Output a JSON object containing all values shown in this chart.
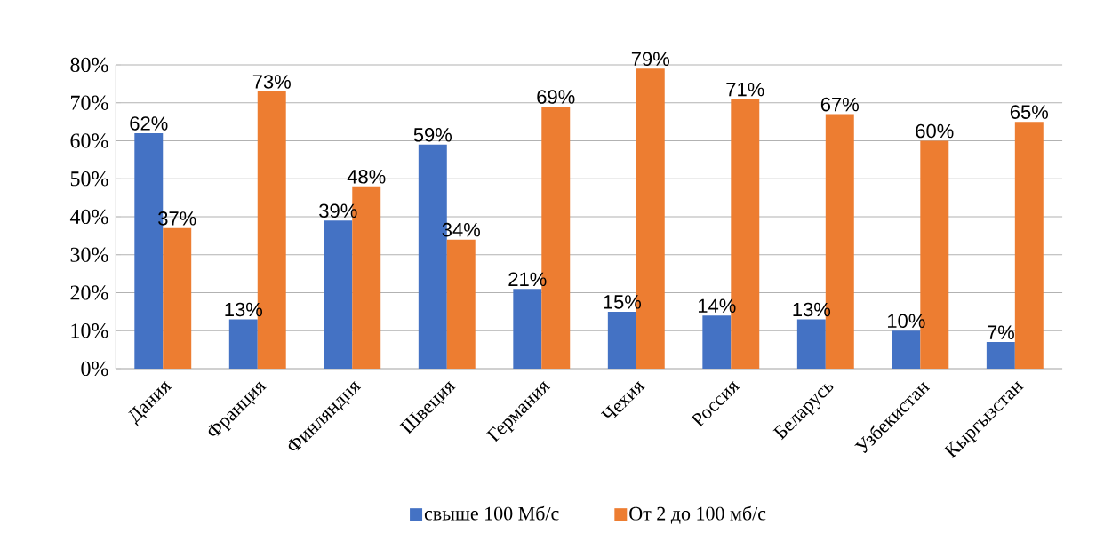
{
  "chart_data": {
    "type": "bar",
    "categories": [
      "Дания",
      "Франция",
      "Финляндия",
      "Швеция",
      "Германия",
      "Чехия",
      "Россия",
      "Беларусь",
      "Узбекистан",
      "Кыргызстан"
    ],
    "series": [
      {
        "name": "свыше 100 Мб/с",
        "color": "#4472c4",
        "values": [
          62,
          13,
          39,
          59,
          21,
          15,
          14,
          13,
          10,
          7
        ],
        "value_labels": [
          "62%",
          "13%",
          "39%",
          "59%",
          "21%",
          "15%",
          "14%",
          "13%",
          "10%",
          "7%"
        ]
      },
      {
        "name": "От 2 до 100 мб/с",
        "color": "#ed7d31",
        "values": [
          37,
          73,
          48,
          34,
          69,
          79,
          71,
          67,
          60,
          65
        ],
        "value_labels": [
          "37%",
          "73%",
          "48%",
          "34%",
          "69%",
          "79%",
          "71%",
          "67%",
          "60%",
          "65%"
        ]
      }
    ],
    "ylim": [
      0,
      80
    ],
    "yticks": [
      {
        "value": 0,
        "label": "0%"
      },
      {
        "value": 10,
        "label": "10%"
      },
      {
        "value": 20,
        "label": "20%"
      },
      {
        "value": 30,
        "label": "30%"
      },
      {
        "value": 40,
        "label": "40%"
      },
      {
        "value": 50,
        "label": "50%"
      },
      {
        "value": 60,
        "label": "60%"
      },
      {
        "value": 70,
        "label": "70%"
      },
      {
        "value": 80,
        "label": "80%"
      }
    ],
    "grid": "y",
    "legend": "bottom"
  }
}
